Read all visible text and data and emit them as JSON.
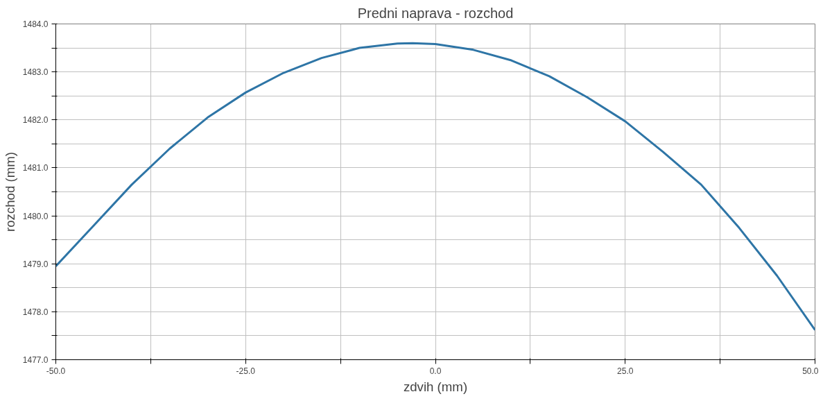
{
  "chart_data": {
    "type": "line",
    "title": "Predni naprava - rozchod",
    "xlabel": "zdvih (mm)",
    "ylabel": "rozchod (mm)",
    "x": [
      -50,
      -45,
      -40,
      -35,
      -30,
      -25,
      -20,
      -15,
      -10,
      -5,
      -3,
      0,
      5,
      10,
      15,
      20,
      25,
      30,
      35,
      40,
      45,
      50
    ],
    "series": [
      {
        "color": "#2e75a6",
        "values": [
          1478.95,
          1479.8,
          1480.65,
          1481.4,
          1482.05,
          1482.57,
          1482.98,
          1483.29,
          1483.5,
          1483.59,
          1483.6,
          1483.58,
          1483.46,
          1483.24,
          1482.91,
          1482.47,
          1481.97,
          1481.33,
          1480.65,
          1479.75,
          1478.75,
          1477.62
        ]
      }
    ],
    "xlim": [
      -50,
      50
    ],
    "ylim": [
      1477,
      1484
    ],
    "xticks": [
      {
        "value": -50,
        "label": "-50.0"
      },
      {
        "value": -37.5,
        "label": null
      },
      {
        "value": -25,
        "label": "-25.0"
      },
      {
        "value": -12.5,
        "label": null
      },
      {
        "value": 0,
        "label": "0.0"
      },
      {
        "value": 12.5,
        "label": null
      },
      {
        "value": 25,
        "label": "25.0"
      },
      {
        "value": 37.5,
        "label": null
      },
      {
        "value": 50,
        "label": "50.0"
      }
    ],
    "yticks": [
      {
        "value": 1477,
        "label": "1477.0"
      },
      {
        "value": 1477.5,
        "label": null
      },
      {
        "value": 1478,
        "label": "1478.0"
      },
      {
        "value": 1478.5,
        "label": null
      },
      {
        "value": 1479,
        "label": "1479.0"
      },
      {
        "value": 1479.5,
        "label": null
      },
      {
        "value": 1480,
        "label": "1480.0"
      },
      {
        "value": 1480.5,
        "label": null
      },
      {
        "value": 1481,
        "label": "1481.0"
      },
      {
        "value": 1481.5,
        "label": null
      },
      {
        "value": 1482,
        "label": "1482.0"
      },
      {
        "value": 1482.5,
        "label": null
      },
      {
        "value": 1483,
        "label": "1483.0"
      },
      {
        "value": 1483.5,
        "label": null
      },
      {
        "value": 1484,
        "label": "1484.0"
      }
    ],
    "grid": true,
    "marker": "none",
    "line_style": "solid"
  }
}
